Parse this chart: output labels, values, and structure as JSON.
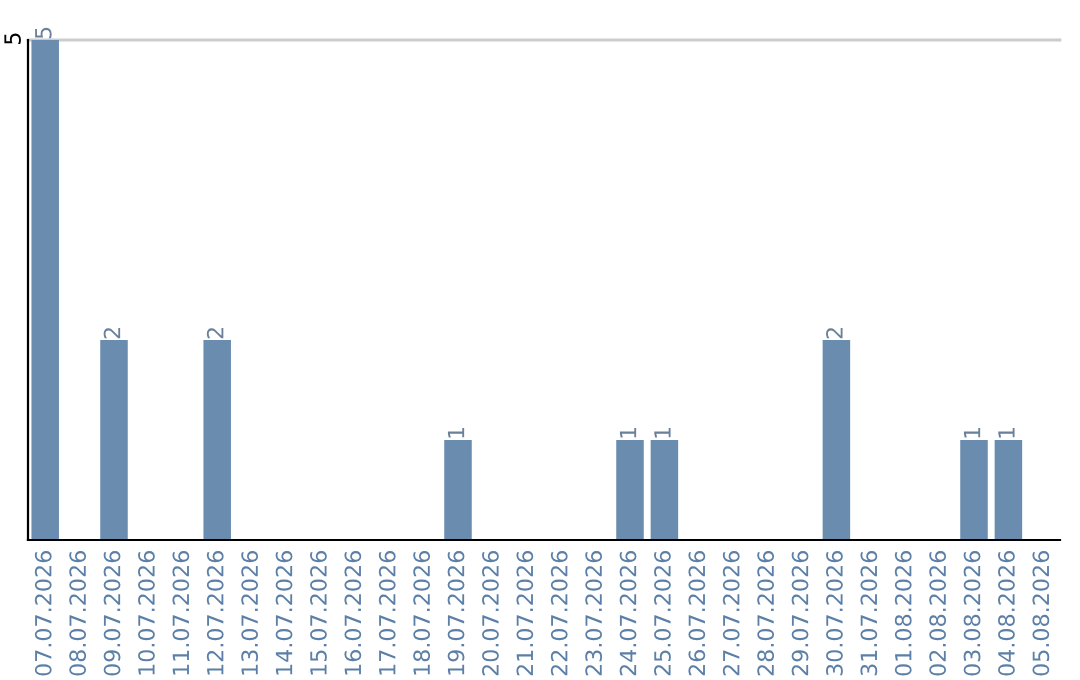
{
  "chart_data": {
    "type": "bar",
    "categories": [
      "07.07.2026",
      "08.07.2026",
      "09.07.2026",
      "10.07.2026",
      "11.07.2026",
      "12.07.2026",
      "13.07.2026",
      "14.07.2026",
      "15.07.2026",
      "16.07.2026",
      "17.07.2026",
      "18.07.2026",
      "19.07.2026",
      "20.07.2026",
      "21.07.2026",
      "22.07.2026",
      "23.07.2026",
      "24.07.2026",
      "25.07.2026",
      "26.07.2026",
      "27.07.2026",
      "28.07.2026",
      "29.07.2026",
      "30.07.2026",
      "31.07.2026",
      "01.08.2026",
      "02.08.2026",
      "03.08.2026",
      "04.08.2026",
      "05.08.2026"
    ],
    "values": [
      5,
      0,
      2,
      0,
      0,
      2,
      0,
      0,
      0,
      0,
      0,
      0,
      1,
      0,
      0,
      0,
      0,
      1,
      1,
      0,
      0,
      0,
      0,
      2,
      0,
      0,
      0,
      1,
      1,
      0
    ],
    "value_labels": [
      "5",
      null,
      "2",
      null,
      null,
      "2",
      null,
      null,
      null,
      null,
      null,
      null,
      "1",
      null,
      null,
      null,
      null,
      "1",
      "1",
      null,
      null,
      null,
      null,
      "2",
      null,
      null,
      null,
      "1",
      "1",
      null
    ],
    "color": "#6a8caf",
    "ylim": [
      0,
      5
    ],
    "yticks": [
      5
    ],
    "ref_lines": [
      {
        "axis": "y",
        "value": 5,
        "color": "#cccccc"
      }
    ]
  }
}
